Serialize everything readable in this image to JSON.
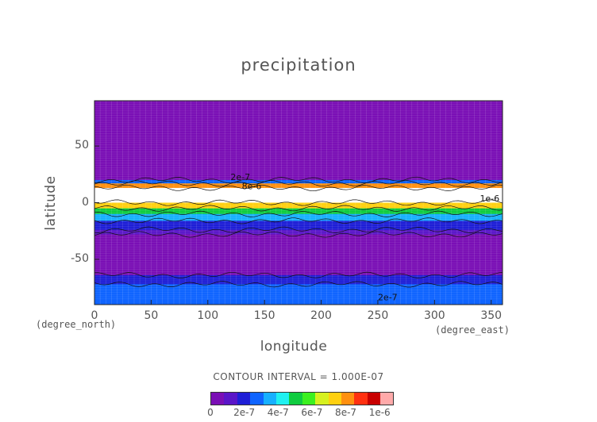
{
  "chart_data": {
    "type": "heatmap",
    "title": "precipitation",
    "xlabel": "longitude",
    "ylabel": "latitude",
    "x_unit": "(degree_east)",
    "y_unit": "(degree_north)",
    "xlim": [
      0,
      360
    ],
    "ylim": [
      -90,
      90
    ],
    "x_ticks": [
      "0",
      "50",
      "100",
      "150",
      "200",
      "250",
      "300",
      "350"
    ],
    "y_ticks": [
      "50",
      "0",
      "-50"
    ],
    "x_tick_values": [
      0,
      50,
      100,
      150,
      200,
      250,
      300,
      350
    ],
    "y_tick_values": [
      50,
      0,
      -50
    ],
    "contour_interval_text": "CONTOUR INTERVAL = 1.000E-07",
    "colorbar": {
      "colors": [
        "#7a0fb5",
        "#5a16c8",
        "#1f1fd6",
        "#0f64ff",
        "#17b0ff",
        "#20f0f0",
        "#10cc40",
        "#3cf020",
        "#d6f020",
        "#ffd010",
        "#ff9010",
        "#ff3010",
        "#c80000",
        "#ffaaaa"
      ],
      "labels": [
        "0",
        "2e-7",
        "4e-7",
        "6e-7",
        "8e-7",
        "1e-6"
      ],
      "label_values": [
        0,
        2e-07,
        4e-07,
        6e-07,
        8e-07,
        1e-06
      ],
      "max_color": "#ffffff"
    },
    "field_bands": [
      {
        "lat_from": 90,
        "lat_to": 20,
        "level": 0
      },
      {
        "lat_from": 20,
        "lat_to": 17,
        "level": 3
      },
      {
        "lat_from": 17,
        "lat_to": 13,
        "level": 10
      },
      {
        "lat_from": 13,
        "lat_to": 0,
        "level": 14
      },
      {
        "lat_from": 0,
        "lat_to": -5,
        "level": 9
      },
      {
        "lat_from": -5,
        "lat_to": -10,
        "level": 6
      },
      {
        "lat_from": -10,
        "lat_to": -16,
        "level": 4
      },
      {
        "lat_from": -16,
        "lat_to": -24,
        "level": 2
      },
      {
        "lat_from": -24,
        "lat_to": -28,
        "level": 1
      },
      {
        "lat_from": -28,
        "lat_to": -64,
        "level": 0
      },
      {
        "lat_from": -64,
        "lat_to": -72,
        "level": 2
      },
      {
        "lat_from": -72,
        "lat_to": -90,
        "level": 3
      }
    ],
    "contour_labels": [
      {
        "text": "2e-7",
        "lon": 120,
        "lat": 20
      },
      {
        "text": "8e-6",
        "lon": 130,
        "lat": 12
      },
      {
        "text": "1e-6",
        "lon": 340,
        "lat": 1
      },
      {
        "text": "2e-7",
        "lon": 250,
        "lat": -86
      }
    ]
  }
}
